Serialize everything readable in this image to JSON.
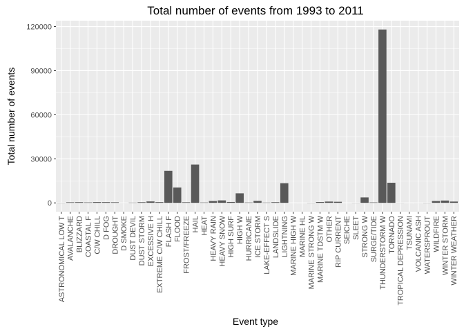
{
  "chart_data": {
    "type": "bar",
    "title": "Total number of events from 1993 to 2011",
    "xlabel": "Event type",
    "ylabel": "Total number of events",
    "ylim": [
      -6000,
      124000
    ],
    "yticks": [
      0,
      30000,
      60000,
      90000,
      120000
    ],
    "ytick_labels": [
      "0",
      "30000",
      "60000",
      "90000",
      "120000"
    ],
    "grid": true,
    "legend": "none",
    "bar_color": "#595959",
    "panel_color": "#ebebeb",
    "categories": [
      "ASTRONOMICAL LOW T",
      "AVALANCHE",
      "BLIZZARD",
      "COASTAL F",
      "C/W CHILL",
      "D FOG",
      "DROUGHT",
      "D SMOKE",
      "DUST DEVIL",
      "DUST STORM",
      "EXCESSIVE H",
      "EXTREME C/W CHILL",
      "FLASH F",
      "FLOOD",
      "FROST/FREEZE",
      "HAIL",
      "HEAT",
      "HEAVY RAIN",
      "HEAVY SNOW",
      "HIGH SURF",
      "HIGH W",
      "HURRICANE",
      "ICE STORM",
      "LAKE-EFFECT S",
      "LANDSLIDE",
      "LIGHTNING",
      "MARINE HIGH W",
      "MARINE HL",
      "MARINE STRONG W",
      "MARINE TDSTM W",
      "OTHER",
      "RIP CURRENT",
      "SEICHE",
      "SLEET",
      "STRONG W",
      "SURGE/TIDE",
      "THUNDERSTORM W",
      "TORNADO",
      "TROPICAL DEPRESSION",
      "TSUNAMI",
      "VOLCANIC ASH",
      "WATERSPROUT",
      "WILDFIRE",
      "WINTER STORM",
      "WINTER WEATHER"
    ],
    "values": [
      100,
      380,
      460,
      300,
      520,
      490,
      400,
      30,
      170,
      430,
      1000,
      500,
      21800,
      10500,
      400,
      26100,
      250,
      1300,
      1700,
      600,
      6500,
      250,
      1400,
      200,
      450,
      13400,
      20,
      10,
      100,
      550,
      900,
      750,
      20,
      80,
      3700,
      300,
      118000,
      13700,
      60,
      20,
      30,
      100,
      1300,
      1600,
      900
    ]
  }
}
